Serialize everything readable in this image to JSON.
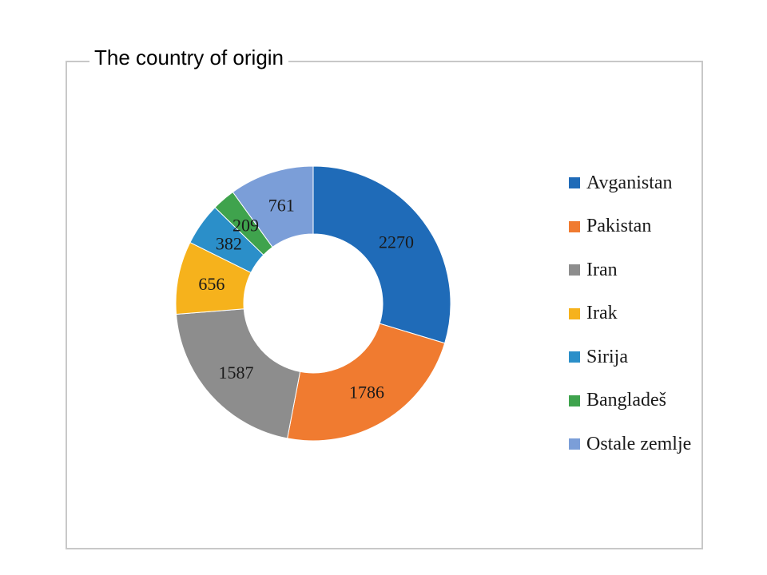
{
  "chart_data": {
    "type": "pie",
    "variant": "donut",
    "title": "The country of origin",
    "legend_position": "right",
    "categories": [
      "Avganistan",
      "Pakistan",
      "Iran",
      "Irak",
      "Sirija",
      "Bangladeš",
      "Ostale zemlje"
    ],
    "values": [
      2270,
      1786,
      1587,
      656,
      382,
      209,
      761
    ],
    "colors": [
      "#1f6bb8",
      "#f07b30",
      "#8d8d8d",
      "#f6b21c",
      "#2b8fc9",
      "#3fa34d",
      "#7b9ed8"
    ],
    "data_labels": [
      "2270",
      "1786",
      "1587",
      "656",
      "382",
      "209",
      "761"
    ],
    "start_angle_deg": 0,
    "direction": "clockwise"
  }
}
